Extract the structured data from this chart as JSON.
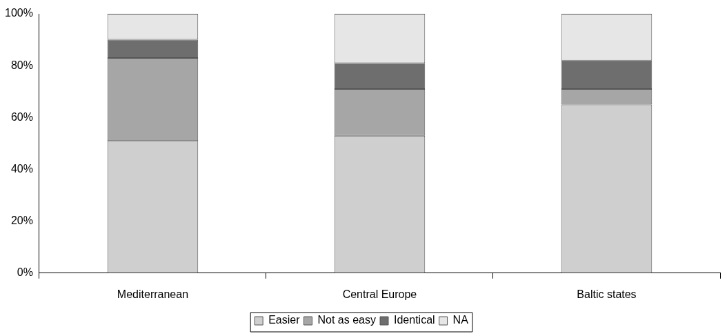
{
  "chart_data": {
    "type": "bar",
    "stacked": true,
    "categories": [
      "Mediterranean",
      "Central Europe",
      "Baltic states"
    ],
    "series": [
      {
        "name": "Easier",
        "color": "#cfcfcf",
        "values": [
          51,
          53,
          65
        ]
      },
      {
        "name": "Not as easy",
        "color": "#a6a6a6",
        "values": [
          32,
          18,
          6
        ]
      },
      {
        "name": "Identical",
        "color": "#6e6e6e",
        "values": [
          7,
          10,
          11
        ]
      },
      {
        "name": "NA",
        "color": "#e6e6e6",
        "values": [
          10,
          19,
          18
        ]
      }
    ],
    "ylim": [
      0,
      100
    ],
    "yticks": [
      {
        "value": 0,
        "label": "0%"
      },
      {
        "value": 20,
        "label": "20%"
      },
      {
        "value": 40,
        "label": "40%"
      },
      {
        "value": 60,
        "label": "60%"
      },
      {
        "value": 80,
        "label": "80%"
      },
      {
        "value": 100,
        "label": "100%"
      }
    ],
    "grid": false,
    "legend": "bottom"
  }
}
